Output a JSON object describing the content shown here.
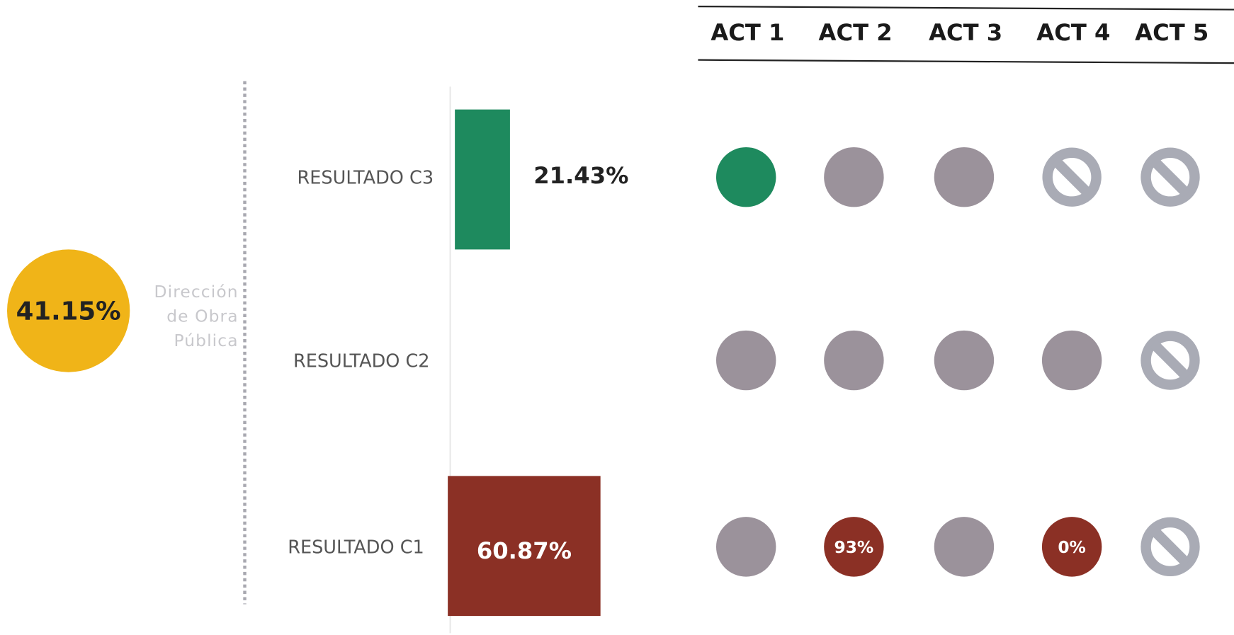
{
  "summary": {
    "value": "41.15%",
    "color": "#f0b418",
    "label": [
      "Dirección",
      "de Obra",
      "Pública"
    ]
  },
  "columns": [
    "ACT 1",
    "ACT 2",
    "ACT 3",
    "ACT 4",
    "ACT 5"
  ],
  "rows": [
    {
      "label": "RESULTADO C3",
      "value": "21.43%",
      "bar_color": "#1e8a5e",
      "activities": [
        {
          "color": "#1e8a5e"
        },
        {
          "color": "#9b929b"
        },
        {
          "color": "#9b929b"
        },
        {
          "blocked": true
        },
        {
          "blocked": true
        }
      ]
    },
    {
      "label": "RESULTADO C2",
      "activities": [
        {
          "color": "#9b929b"
        },
        {
          "color": "#9b929b"
        },
        {
          "color": "#9b929b"
        },
        {
          "color": "#9b929b"
        },
        {
          "blocked": true
        }
      ]
    },
    {
      "label": "RESULTADO C1",
      "value": "60.87%",
      "bar_color": "#8b3025",
      "activities": [
        {
          "color": "#9b929b"
        },
        {
          "color": "#8b3025",
          "label": "93%"
        },
        {
          "color": "#9b929b"
        },
        {
          "color": "#8b3025",
          "label": "0%"
        },
        {
          "blocked": true
        }
      ]
    }
  ]
}
